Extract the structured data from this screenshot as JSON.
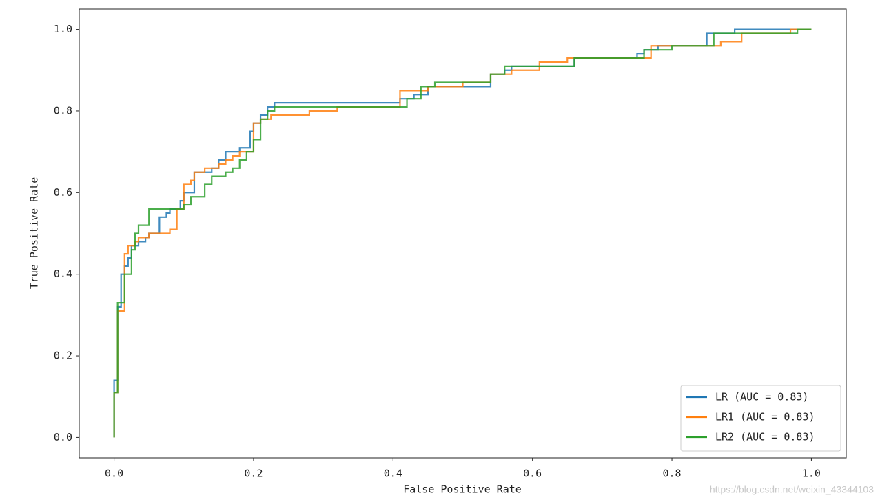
{
  "chart_data": {
    "type": "line",
    "xlabel": "False Positive Rate",
    "ylabel": "True Positive Rate",
    "xlim": [
      -0.05,
      1.05
    ],
    "ylim": [
      -0.05,
      1.05
    ],
    "xticks": [
      {
        "value": 0,
        "label": "0.0"
      },
      0.2,
      0.4,
      0.6,
      0.8,
      {
        "value": 1,
        "label": "1.0"
      }
    ],
    "yticks": [
      {
        "value": 0,
        "label": "0.0"
      },
      0.2,
      0.4,
      0.6,
      0.8,
      {
        "value": 1,
        "label": "1.0"
      }
    ],
    "grid": false,
    "legend": "lower right",
    "series": [
      {
        "name": "LR (AUC = 0.83)",
        "color": "#1f77b4",
        "x": [
          0,
          0,
          0.005,
          0.005,
          0.01,
          0.01,
          0.015,
          0.015,
          0.02,
          0.02,
          0.025,
          0.025,
          0.035,
          0.035,
          0.045,
          0.045,
          0.05,
          0.05,
          0.065,
          0.065,
          0.075,
          0.075,
          0.08,
          0.08,
          0.095,
          0.095,
          0.1,
          0.1,
          0.115,
          0.115,
          0.14,
          0.14,
          0.15,
          0.15,
          0.16,
          0.16,
          0.18,
          0.18,
          0.195,
          0.195,
          0.2,
          0.2,
          0.21,
          0.21,
          0.22,
          0.22,
          0.23,
          0.23,
          0.41,
          0.41,
          0.43,
          0.43,
          0.45,
          0.45,
          0.54,
          0.54,
          0.56,
          0.56,
          0.57,
          0.57,
          0.66,
          0.66,
          0.75,
          0.75,
          0.76,
          0.76,
          0.78,
          0.78,
          0.85,
          0.85,
          0.89,
          0.89,
          1.0
        ],
        "values": [
          0,
          0.14,
          0.14,
          0.32,
          0.32,
          0.4,
          0.4,
          0.42,
          0.42,
          0.44,
          0.44,
          0.47,
          0.47,
          0.48,
          0.48,
          0.49,
          0.49,
          0.5,
          0.5,
          0.54,
          0.54,
          0.55,
          0.55,
          0.56,
          0.56,
          0.58,
          0.58,
          0.6,
          0.6,
          0.65,
          0.65,
          0.66,
          0.66,
          0.68,
          0.68,
          0.7,
          0.7,
          0.71,
          0.71,
          0.75,
          0.75,
          0.77,
          0.77,
          0.79,
          0.79,
          0.81,
          0.81,
          0.82,
          0.82,
          0.83,
          0.83,
          0.84,
          0.84,
          0.86,
          0.86,
          0.89,
          0.89,
          0.9,
          0.9,
          0.91,
          0.91,
          0.93,
          0.93,
          0.94,
          0.94,
          0.95,
          0.95,
          0.96,
          0.96,
          0.99,
          0.99,
          1.0,
          1.0
        ]
      },
      {
        "name": "LR1 (AUC = 0.83)",
        "color": "#ff7f0e",
        "x": [
          0,
          0,
          0.005,
          0.005,
          0.015,
          0.015,
          0.02,
          0.02,
          0.03,
          0.03,
          0.035,
          0.035,
          0.05,
          0.05,
          0.08,
          0.08,
          0.09,
          0.09,
          0.1,
          0.1,
          0.11,
          0.11,
          0.115,
          0.115,
          0.13,
          0.13,
          0.15,
          0.15,
          0.16,
          0.16,
          0.17,
          0.17,
          0.18,
          0.18,
          0.2,
          0.2,
          0.21,
          0.21,
          0.225,
          0.225,
          0.28,
          0.28,
          0.32,
          0.32,
          0.41,
          0.41,
          0.45,
          0.45,
          0.5,
          0.5,
          0.54,
          0.54,
          0.57,
          0.57,
          0.61,
          0.61,
          0.65,
          0.65,
          0.77,
          0.77,
          0.87,
          0.87,
          0.9,
          0.9,
          0.97,
          0.97,
          1.0
        ],
        "values": [
          0,
          0.11,
          0.11,
          0.31,
          0.31,
          0.45,
          0.45,
          0.47,
          0.47,
          0.48,
          0.48,
          0.49,
          0.49,
          0.5,
          0.5,
          0.51,
          0.51,
          0.56,
          0.56,
          0.62,
          0.62,
          0.63,
          0.63,
          0.65,
          0.65,
          0.66,
          0.66,
          0.67,
          0.67,
          0.68,
          0.68,
          0.69,
          0.69,
          0.7,
          0.7,
          0.77,
          0.77,
          0.78,
          0.78,
          0.79,
          0.79,
          0.8,
          0.8,
          0.81,
          0.81,
          0.85,
          0.85,
          0.86,
          0.86,
          0.87,
          0.87,
          0.89,
          0.89,
          0.9,
          0.9,
          0.92,
          0.92,
          0.93,
          0.93,
          0.96,
          0.96,
          0.97,
          0.97,
          0.99,
          0.99,
          1.0,
          1.0
        ]
      },
      {
        "name": "LR2 (AUC = 0.83)",
        "color": "#2ca02c",
        "x": [
          0,
          0,
          0.005,
          0.005,
          0.015,
          0.015,
          0.025,
          0.025,
          0.03,
          0.03,
          0.035,
          0.035,
          0.05,
          0.05,
          0.1,
          0.1,
          0.11,
          0.11,
          0.13,
          0.13,
          0.14,
          0.14,
          0.16,
          0.16,
          0.17,
          0.17,
          0.18,
          0.18,
          0.19,
          0.19,
          0.2,
          0.2,
          0.21,
          0.21,
          0.22,
          0.22,
          0.23,
          0.23,
          0.42,
          0.42,
          0.44,
          0.44,
          0.46,
          0.46,
          0.54,
          0.54,
          0.56,
          0.56,
          0.66,
          0.66,
          0.76,
          0.76,
          0.8,
          0.8,
          0.86,
          0.86,
          0.98,
          0.98,
          1.0
        ],
        "values": [
          0,
          0.11,
          0.11,
          0.33,
          0.33,
          0.4,
          0.4,
          0.46,
          0.46,
          0.5,
          0.5,
          0.52,
          0.52,
          0.56,
          0.56,
          0.57,
          0.57,
          0.59,
          0.59,
          0.62,
          0.62,
          0.64,
          0.64,
          0.65,
          0.65,
          0.66,
          0.66,
          0.68,
          0.68,
          0.7,
          0.7,
          0.73,
          0.73,
          0.78,
          0.78,
          0.8,
          0.8,
          0.81,
          0.81,
          0.83,
          0.83,
          0.86,
          0.86,
          0.87,
          0.87,
          0.89,
          0.89,
          0.91,
          0.91,
          0.93,
          0.93,
          0.95,
          0.95,
          0.96,
          0.96,
          0.99,
          0.99,
          1.0,
          1.0
        ]
      }
    ]
  },
  "watermark": "https://blog.csdn.net/weixin_43344103"
}
